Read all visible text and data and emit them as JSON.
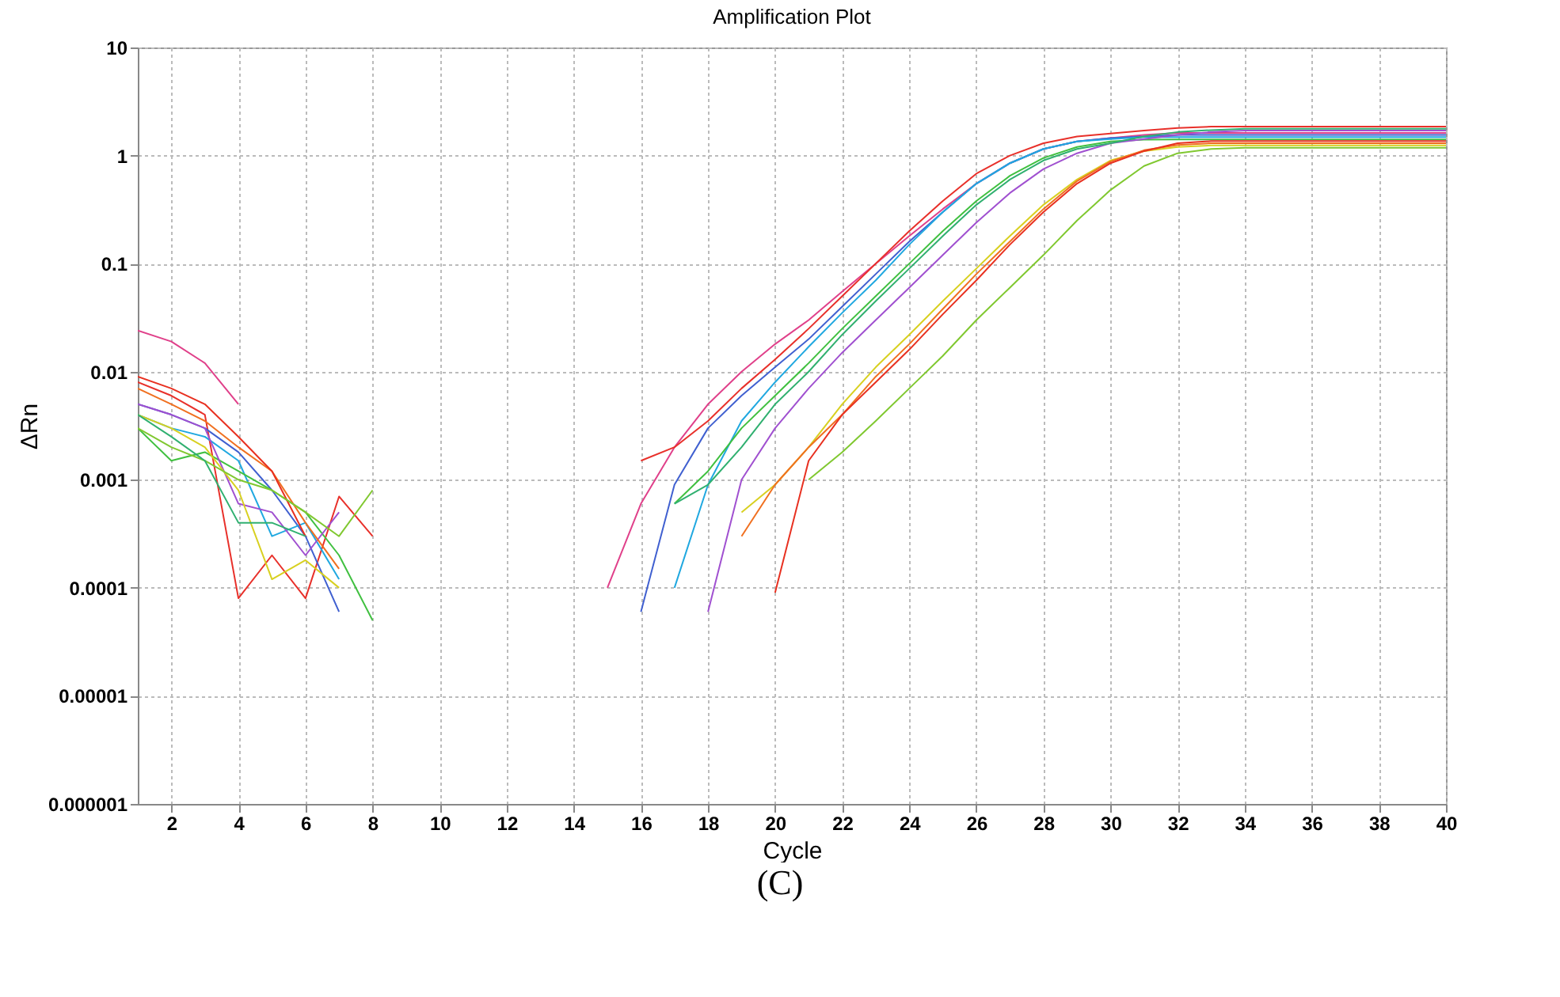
{
  "chart_data": {
    "type": "line",
    "title": "Amplification Plot",
    "xlabel": "Cycle",
    "ylabel": "ΔRn",
    "annotations": [
      "(C)"
    ],
    "log": true,
    "grid": true,
    "x": [
      1,
      2,
      3,
      4,
      5,
      6,
      7,
      8,
      9,
      10,
      11,
      12,
      13,
      14,
      15,
      16,
      17,
      18,
      19,
      20,
      21,
      22,
      23,
      24,
      25,
      26,
      27,
      28,
      29,
      30,
      31,
      32,
      33,
      34,
      35,
      36,
      37,
      38,
      39,
      40
    ],
    "xlim": [
      1,
      40
    ],
    "xticks": [
      2,
      4,
      6,
      8,
      10,
      12,
      14,
      16,
      18,
      20,
      22,
      24,
      26,
      28,
      30,
      32,
      34,
      36,
      38,
      40
    ],
    "ylim": [
      1e-06,
      10
    ],
    "yticks": [
      {
        "value": 1e-06,
        "label": "0.000001"
      },
      {
        "value": 1e-05,
        "label": "0.00001"
      },
      {
        "value": 0.0001,
        "label": "0.0001"
      },
      {
        "value": 0.001,
        "label": "0.001"
      },
      {
        "value": 0.01,
        "label": "0.01"
      },
      {
        "value": 0.1,
        "label": "0.1"
      },
      {
        "value": 1,
        "label": "1"
      },
      {
        "value": 10,
        "label": "10"
      }
    ],
    "series": [
      {
        "color": "#e0408a",
        "values": [
          0.024,
          0.019,
          0.012,
          0.005,
          null,
          null,
          null,
          null,
          null,
          null,
          null,
          null,
          null,
          null,
          0.0001,
          0.0006,
          0.002,
          0.005,
          0.01,
          0.018,
          0.03,
          0.055,
          0.1,
          0.18,
          0.32,
          0.55,
          0.85,
          1.15,
          1.35,
          1.45,
          1.55,
          1.62,
          1.62,
          1.62,
          1.62,
          1.62,
          1.62,
          1.62,
          1.62,
          1.62
        ]
      },
      {
        "color": "#e8302a",
        "values": [
          0.008,
          0.006,
          0.004,
          8e-05,
          0.0002,
          8e-05,
          0.0007,
          0.0003,
          null,
          null,
          null,
          null,
          null,
          null,
          null,
          0.0015,
          0.002,
          0.0035,
          0.007,
          0.013,
          0.025,
          0.05,
          0.1,
          0.2,
          0.38,
          0.68,
          1.0,
          1.3,
          1.5,
          1.6,
          1.7,
          1.8,
          1.85,
          1.85,
          1.85,
          1.85,
          1.85,
          1.85,
          1.85,
          1.85
        ]
      },
      {
        "color": "#4060d0",
        "values": [
          0.005,
          0.004,
          0.003,
          0.0018,
          0.0008,
          0.0003,
          6e-05,
          null,
          null,
          null,
          null,
          null,
          null,
          null,
          null,
          6e-05,
          0.0009,
          0.003,
          0.006,
          0.011,
          0.02,
          0.04,
          0.08,
          0.16,
          0.3,
          0.55,
          0.85,
          1.15,
          1.35,
          1.45,
          1.5,
          1.55,
          1.55,
          1.55,
          1.55,
          1.55,
          1.55,
          1.55,
          1.55,
          1.55
        ]
      },
      {
        "color": "#20a8e0",
        "values": [
          0.004,
          0.003,
          0.0025,
          0.0015,
          0.0003,
          0.0004,
          0.00012,
          null,
          null,
          null,
          null,
          null,
          null,
          null,
          null,
          null,
          0.0001,
          0.0009,
          0.0035,
          0.008,
          0.017,
          0.035,
          0.07,
          0.15,
          0.3,
          0.55,
          0.85,
          1.15,
          1.35,
          1.42,
          1.48,
          1.48,
          1.48,
          1.48,
          1.48,
          1.48,
          1.48,
          1.48,
          1.48,
          1.48
        ]
      },
      {
        "color": "#40c040",
        "values": [
          0.003,
          0.0015,
          0.0018,
          0.0012,
          0.0008,
          0.0005,
          0.0002,
          5e-05,
          null,
          null,
          null,
          null,
          null,
          null,
          null,
          null,
          0.0006,
          0.0012,
          0.003,
          0.006,
          0.012,
          0.025,
          0.05,
          0.1,
          0.2,
          0.38,
          0.65,
          0.95,
          1.2,
          1.35,
          1.4,
          1.41,
          1.41,
          1.41,
          1.41,
          1.41,
          1.41,
          1.41,
          1.41,
          1.41
        ]
      },
      {
        "color": "#a050d0",
        "values": [
          0.005,
          0.004,
          0.003,
          0.0006,
          0.0005,
          0.0002,
          0.0005,
          null,
          null,
          null,
          null,
          null,
          null,
          null,
          null,
          null,
          null,
          6e-05,
          0.001,
          0.003,
          0.007,
          0.015,
          0.03,
          0.06,
          0.12,
          0.24,
          0.45,
          0.75,
          1.05,
          1.3,
          1.42,
          1.55,
          1.65,
          1.7,
          1.7,
          1.7,
          1.7,
          1.7,
          1.7,
          1.7
        ]
      },
      {
        "color": "#d8d020",
        "values": [
          0.004,
          0.003,
          0.002,
          0.0008,
          0.00012,
          0.00018,
          0.0001,
          null,
          null,
          null,
          null,
          null,
          null,
          null,
          null,
          null,
          null,
          null,
          0.0005,
          0.0009,
          0.002,
          0.005,
          0.011,
          0.022,
          0.045,
          0.09,
          0.18,
          0.35,
          0.6,
          0.9,
          1.1,
          1.2,
          1.24,
          1.24,
          1.24,
          1.24,
          1.24,
          1.24,
          1.24,
          1.24
        ]
      },
      {
        "color": "#f07020",
        "values": [
          0.007,
          0.005,
          0.0035,
          0.002,
          0.0012,
          0.0004,
          0.00015,
          null,
          null,
          null,
          null,
          null,
          null,
          null,
          null,
          null,
          null,
          null,
          0.0003,
          0.0009,
          0.002,
          0.004,
          0.009,
          0.018,
          0.038,
          0.08,
          0.16,
          0.32,
          0.58,
          0.88,
          1.12,
          1.25,
          1.3,
          1.3,
          1.3,
          1.3,
          1.3,
          1.3,
          1.3,
          1.3
        ]
      },
      {
        "color": "#e83020",
        "values": [
          0.009,
          0.007,
          0.005,
          0.0025,
          0.0012,
          0.0003,
          null,
          null,
          null,
          null,
          null,
          null,
          null,
          null,
          null,
          null,
          null,
          null,
          null,
          9e-05,
          0.0015,
          0.004,
          0.008,
          0.016,
          0.034,
          0.07,
          0.15,
          0.3,
          0.55,
          0.85,
          1.1,
          1.3,
          1.36,
          1.36,
          1.36,
          1.36,
          1.36,
          1.36,
          1.36,
          1.36
        ]
      },
      {
        "color": "#80c830",
        "values": [
          0.003,
          0.002,
          0.0015,
          0.001,
          0.0008,
          0.0005,
          0.0003,
          0.0008,
          null,
          null,
          null,
          null,
          null,
          null,
          null,
          null,
          null,
          null,
          null,
          null,
          0.001,
          0.0018,
          0.0035,
          0.007,
          0.014,
          0.03,
          0.06,
          0.12,
          0.25,
          0.48,
          0.8,
          1.05,
          1.15,
          1.18,
          1.18,
          1.18,
          1.18,
          1.18,
          1.18,
          1.18
        ]
      },
      {
        "color": "#30b070",
        "values": [
          0.004,
          0.0025,
          0.0015,
          0.0004,
          0.0004,
          0.0003,
          null,
          null,
          null,
          null,
          null,
          null,
          null,
          null,
          null,
          null,
          0.0006,
          0.0009,
          0.002,
          0.005,
          0.01,
          0.022,
          0.045,
          0.09,
          0.18,
          0.35,
          0.6,
          0.9,
          1.15,
          1.3,
          1.5,
          1.65,
          1.72,
          1.77,
          1.77,
          1.77,
          1.77,
          1.77,
          1.77,
          1.77
        ]
      }
    ]
  }
}
